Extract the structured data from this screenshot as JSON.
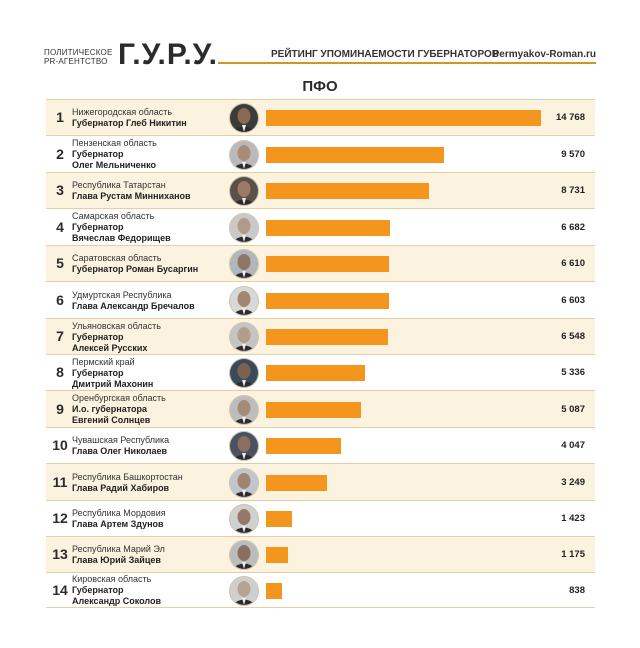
{
  "header": {
    "agency_line1": "ПОЛИТИЧЕСКОЕ",
    "agency_line2": "PR-АГЕНТСТВО",
    "logo": "Г.У.Р.У.",
    "subtitle": "РЕЙТИНГ УПОМИНАЕМОСТИ ГУБЕРНАТОРОВ",
    "site": "Permyakov-Roman.ru"
  },
  "region_title": "ПФО",
  "colors": {
    "bar": "#f4961e",
    "accent_line": "#d4922a",
    "row_alt": "#fbf2df"
  },
  "chart_data": {
    "type": "bar",
    "orientation": "horizontal",
    "title": "ПФО",
    "categories": [
      "Нижегородская область",
      "Пензенская область",
      "Республика Татарстан",
      "Самарская область",
      "Саратовская область",
      "Удмуртская Республика",
      "Ульяновская область",
      "Пермский край",
      "Оренбургская область",
      "Чувашская Республика",
      "Республика Башкортостан",
      "Республика Мордовия",
      "Республика Марий Эл",
      "Кировская область"
    ],
    "values": [
      14768,
      9570,
      8731,
      6682,
      6610,
      6603,
      6548,
      5336,
      5087,
      4047,
      3249,
      1423,
      1175,
      838
    ],
    "xlim": [
      0,
      14768
    ],
    "rows": [
      {
        "rank": "1",
        "region": "Нижегородская область",
        "name_lines": [
          "Губернатор Глеб Никитин"
        ],
        "value": 14768,
        "value_label": "14 768"
      },
      {
        "rank": "2",
        "region": "Пензенская область",
        "name_lines": [
          "Губернатор",
          "Олег Мельниченко"
        ],
        "value": 9570,
        "value_label": "9 570"
      },
      {
        "rank": "3",
        "region": "Республика Татарстан",
        "name_lines": [
          "Глава Рустам Минниханов"
        ],
        "value": 8731,
        "value_label": "8 731"
      },
      {
        "rank": "4",
        "region": "Самарская область",
        "name_lines": [
          "Губернатор",
          "Вячеслав Федорищев"
        ],
        "value": 6682,
        "value_label": "6 682"
      },
      {
        "rank": "5",
        "region": "Саратовская область",
        "name_lines": [
          "Губернатор Роман Бусаргин"
        ],
        "value": 6610,
        "value_label": "6 610"
      },
      {
        "rank": "6",
        "region": "Удмуртская Республика",
        "name_lines": [
          "Глава Александр Бречалов"
        ],
        "value": 6603,
        "value_label": "6 603"
      },
      {
        "rank": "7",
        "region": "Ульяновская область",
        "name_lines": [
          "Губернатор",
          "Алексей Русских"
        ],
        "value": 6548,
        "value_label": "6 548"
      },
      {
        "rank": "8",
        "region": "Пермский край",
        "name_lines": [
          "Губернатор",
          "Дмитрий Махонин"
        ],
        "value": 5336,
        "value_label": "5 336"
      },
      {
        "rank": "9",
        "region": "Оренбургская область",
        "name_lines": [
          "И.о. губернатора",
          "Евгений Солнцев"
        ],
        "value": 5087,
        "value_label": "5 087"
      },
      {
        "rank": "10",
        "region": "Чувашская Республика",
        "name_lines": [
          "Глава Олег Николаев"
        ],
        "value": 4047,
        "value_label": "4 047"
      },
      {
        "rank": "11",
        "region": "Республика Башкортостан",
        "name_lines": [
          "Глава Радий Хабиров"
        ],
        "value": 3249,
        "value_label": "3 249"
      },
      {
        "rank": "12",
        "region": "Республика Мордовия",
        "name_lines": [
          "Глава Артем Здунов"
        ],
        "value": 1423,
        "value_label": "1 423"
      },
      {
        "rank": "13",
        "region": "Республика Марий Эл",
        "name_lines": [
          "Глава Юрий Зайцев"
        ],
        "value": 1175,
        "value_label": "1 175"
      },
      {
        "rank": "14",
        "region": "Кировская область",
        "name_lines": [
          "Губернатор",
          "Александр Соколов"
        ],
        "value": 838,
        "value_label": "838"
      }
    ]
  }
}
